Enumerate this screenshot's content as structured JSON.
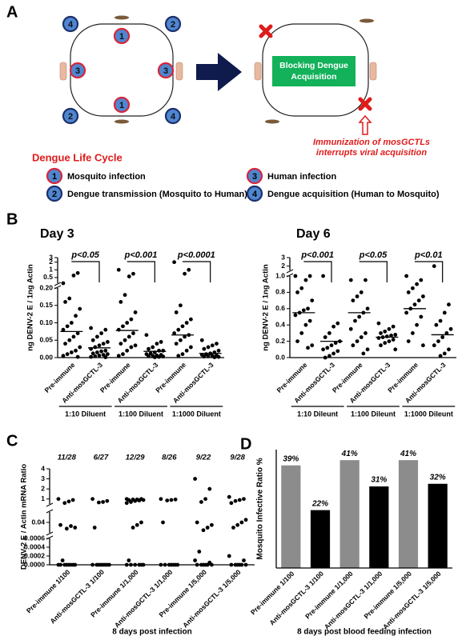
{
  "panel_a": {
    "label": "A",
    "cycle_nodes": [
      "4",
      "1",
      "2",
      "3",
      "3",
      "2",
      "1",
      "4"
    ],
    "block_lines": [
      "Blocking Dengue",
      "Acquisition"
    ],
    "annotation_lines": [
      "Immunization of mosGCTLs",
      "interrupts viral acquisition"
    ],
    "legend_title": "Dengue Life Cycle",
    "legend_items": [
      {
        "number": "1",
        "text": "Mosquito infection"
      },
      {
        "number": "3",
        "text": "Human infection"
      },
      {
        "number": "2",
        "text": "Dengue transmission (Mosquito to Human)"
      },
      {
        "number": "4",
        "text": "Dengue acquisition (Human to Mosquito)"
      }
    ]
  },
  "panel_labels": [
    "B",
    "C",
    "D"
  ],
  "chart_data": [
    {
      "type": "strip",
      "title": "Day 3",
      "y_label": "ng DENV-2 E / 1ng Actin",
      "color": "#000000",
      "categories": [
        "Pre-immune",
        "Anti-mosGCTL-3",
        "Pre-immune",
        "Anti-mosGCTL-3",
        "Pre-immune",
        "Anti-mosGCTL-3"
      ],
      "values": [
        [
          0.3,
          0.75,
          0.6,
          0.17,
          0.16,
          0.14,
          0.12,
          0.1,
          0.09,
          0.08,
          0.07,
          0.06,
          0.05,
          0.04,
          0.03,
          0.02,
          0.015,
          0.01,
          0.005,
          0.002
        ],
        [
          0.085,
          0.08,
          0.07,
          0.06,
          0.05,
          0.045,
          0.04,
          0.035,
          0.03,
          0.025,
          0.02,
          0.018,
          0.015,
          0.012,
          0.01,
          0.008,
          0.006,
          0.004,
          0.002,
          0.001
        ],
        [
          1.0,
          0.7,
          0.55,
          0.18,
          0.16,
          0.13,
          0.11,
          0.1,
          0.09,
          0.08,
          0.07,
          0.06,
          0.05,
          0.04,
          0.035,
          0.03,
          0.02,
          0.01,
          0.005
        ],
        [
          0.065,
          0.045,
          0.04,
          0.03,
          0.025,
          0.02,
          0.02,
          0.015,
          0.012,
          0.01,
          0.008,
          0.006,
          0.005,
          0.004,
          0.003,
          0.002,
          0.001
        ],
        [
          2.0,
          1.0,
          0.7,
          0.15,
          0.13,
          0.11,
          0.1,
          0.09,
          0.08,
          0.07,
          0.065,
          0.06,
          0.05,
          0.04,
          0.03,
          0.02,
          0.01,
          0.005
        ],
        [
          0.05,
          0.04,
          0.035,
          0.03,
          0.025,
          0.02,
          0.015,
          0.012,
          0.01,
          0.008,
          0.006,
          0.005,
          0.004,
          0.003,
          0.002,
          0.001
        ]
      ],
      "means": [
        0.075,
        0.028,
        0.078,
        0.018,
        0.065,
        0.012
      ],
      "y_segments": [
        {
          "ylim": [
            0,
            0.2
          ],
          "yticks": [
            {
              "value": 0,
              "label": "0.00"
            },
            0.05,
            {
              "value": 0.1,
              "label": "0.10"
            },
            0.15,
            {
              "value": 0.2,
              "label": "0.20"
            }
          ]
        },
        {
          "ylim": [
            0.3,
            3
          ],
          "log_scale": true,
          "yticks": [
            0.5,
            1,
            2,
            3
          ]
        }
      ],
      "comparisons": [
        "p<0.05",
        "p<0.001",
        "p<0.0001"
      ],
      "groups": [
        "1:10 Diluent",
        "1:100 Diluent",
        "1:1000 Diluent"
      ]
    },
    {
      "type": "strip",
      "title": "Day 6",
      "y_label": "ng DENV-2 E / 1ng Actin",
      "color": "#000000",
      "categories": [
        "Pre-immune",
        "Anti-mosGCTL-3",
        "Pre-immune",
        "Anti-mosGCTL-3",
        "Pre-immune",
        "Anti-mosGCTL-3"
      ],
      "values": [
        [
          1.0,
          1.0,
          0.95,
          0.85,
          0.8,
          0.7,
          0.6,
          0.58,
          0.55,
          0.52,
          0.45,
          0.4,
          0.3,
          0.2,
          0.15,
          0.12
        ],
        [
          1.0,
          0.42,
          0.38,
          0.3,
          0.25,
          0.2,
          0.18,
          0.15,
          0.12,
          0.1,
          0.08,
          0.05,
          0.02,
          0
        ],
        [
          0.95,
          0.95,
          0.8,
          0.75,
          0.7,
          0.6,
          0.55,
          0.5,
          0.45,
          0.35,
          0.3,
          0.25,
          0.2,
          0.15,
          0.1,
          0.05
        ],
        [
          0.42,
          0.38,
          0.35,
          0.32,
          0.3,
          0.28,
          0.27,
          0.26,
          0.25,
          0.24,
          0.22,
          0.2,
          0.18,
          0.15,
          0.1
        ],
        [
          1.0,
          0.95,
          0.9,
          0.85,
          0.8,
          0.75,
          0.7,
          0.65,
          0.6,
          0.55,
          0.5,
          0.4,
          0.3,
          0.2,
          0.15
        ],
        [
          2.0,
          0.65,
          0.55,
          0.45,
          0.4,
          0.35,
          0.3,
          0.25,
          0.2,
          0.15,
          0.1,
          0.05,
          0.02
        ]
      ],
      "means": [
        0.55,
        0.2,
        0.55,
        0.25,
        0.6,
        0.28
      ],
      "y_segments": [
        {
          "ylim": [
            0,
            1.0
          ],
          "yticks": [
            {
              "value": 0,
              "label": "0.0"
            },
            0.2,
            0.4,
            0.6,
            0.8,
            {
              "value": 1,
              "label": "1.0"
            }
          ]
        },
        {
          "ylim": [
            1.5,
            3
          ],
          "yticks": [
            2,
            3
          ]
        }
      ],
      "comparisons": [
        "p<0.001",
        "p<0.05",
        "p<0.01"
      ],
      "groups": [
        "1:10 Dileunt",
        "1:100 Dileunt",
        "1:1000 Dileunt"
      ]
    },
    {
      "type": "strip",
      "y_label": "DENV-2 E / Actin mRNA Ratio",
      "x_label": "8 days post infection",
      "color": "#000000",
      "categories": [
        "Pre-immune 1/100",
        "Anti-mosGCTL-3 1/100",
        "Pre-immune 1/1,000",
        "Anti-mosGCTL-3 1/1,000",
        "Pre-immune 1/5,000",
        "Anti-mosGCTL-3 1/5,000"
      ],
      "fractions": [
        "11/28",
        "6/27",
        "12/29",
        "8/26",
        "9/22",
        "9/28"
      ],
      "values": [
        [
          1.0,
          0.9,
          0.75,
          0.6,
          0.035,
          0.03,
          0.033,
          0.028,
          0.0001,
          0,
          0,
          0,
          0,
          0,
          0,
          0,
          0
        ],
        [
          1.0,
          0.8,
          0.7,
          0.65,
          0.03,
          0,
          0,
          0,
          0,
          0,
          0,
          0,
          0
        ],
        [
          1.0,
          1.0,
          0.95,
          0.95,
          0.9,
          0.9,
          0.85,
          0.8,
          0.7,
          0.6,
          0.04,
          0.035,
          0.03,
          0.0001,
          0,
          0,
          0,
          0,
          0,
          0
        ],
        [
          1.0,
          0.95,
          0.9,
          0.85,
          0.04,
          0,
          0,
          0,
          0,
          0,
          0,
          0
        ],
        [
          3.0,
          2.0,
          1.0,
          0.7,
          0.04,
          0.035,
          0.03,
          0.025,
          0.0003,
          0.0001,
          5e-05,
          0,
          0,
          0,
          0,
          0,
          0
        ],
        [
          1.2,
          1.0,
          0.9,
          0.8,
          0.6,
          0.045,
          0.04,
          0.035,
          0.03,
          0.0002,
          0.0001,
          0,
          0,
          0,
          0,
          0,
          0
        ]
      ],
      "y_segments": [
        {
          "ylim": [
            0,
            0.0006
          ],
          "yticks": [
            {
              "value": 0,
              "label": "0.0000"
            },
            {
              "value": 0.0002,
              "label": "0.0002"
            },
            {
              "value": 0.0004,
              "label": "0.0004"
            },
            {
              "value": 0.0006,
              "label": "0.0006"
            }
          ]
        },
        {
          "ylim": [
            0.02,
            0.06
          ],
          "yticks": [
            0.04
          ]
        },
        {
          "ylim": [
            0.5,
            4
          ],
          "yticks": [
            1,
            2,
            3,
            4
          ]
        }
      ]
    },
    {
      "type": "bar",
      "y_label": "Mosquito Infective Ratio %",
      "x_label": "8 days post blood feeding infection",
      "categories": [
        "Pre-immune 1/100",
        "Anti-mosGCTL-3 1/100",
        "Pre-immune 1/1,000",
        "Anti-mosGCTL-3 1/1,000",
        "Pre-immune 1/5,000",
        "Anti-mosGCTL-3 1/5,000"
      ],
      "values": [
        39,
        22,
        41,
        31,
        41,
        32
      ],
      "value_labels": [
        "39%",
        "22%",
        "41%",
        "31%",
        "41%",
        "32%"
      ],
      "colors": [
        "#8c8c8c",
        "#000000",
        "#8c8c8c",
        "#000000",
        "#8c8c8c",
        "#000000"
      ],
      "ylim": [
        0,
        45
      ]
    }
  ]
}
